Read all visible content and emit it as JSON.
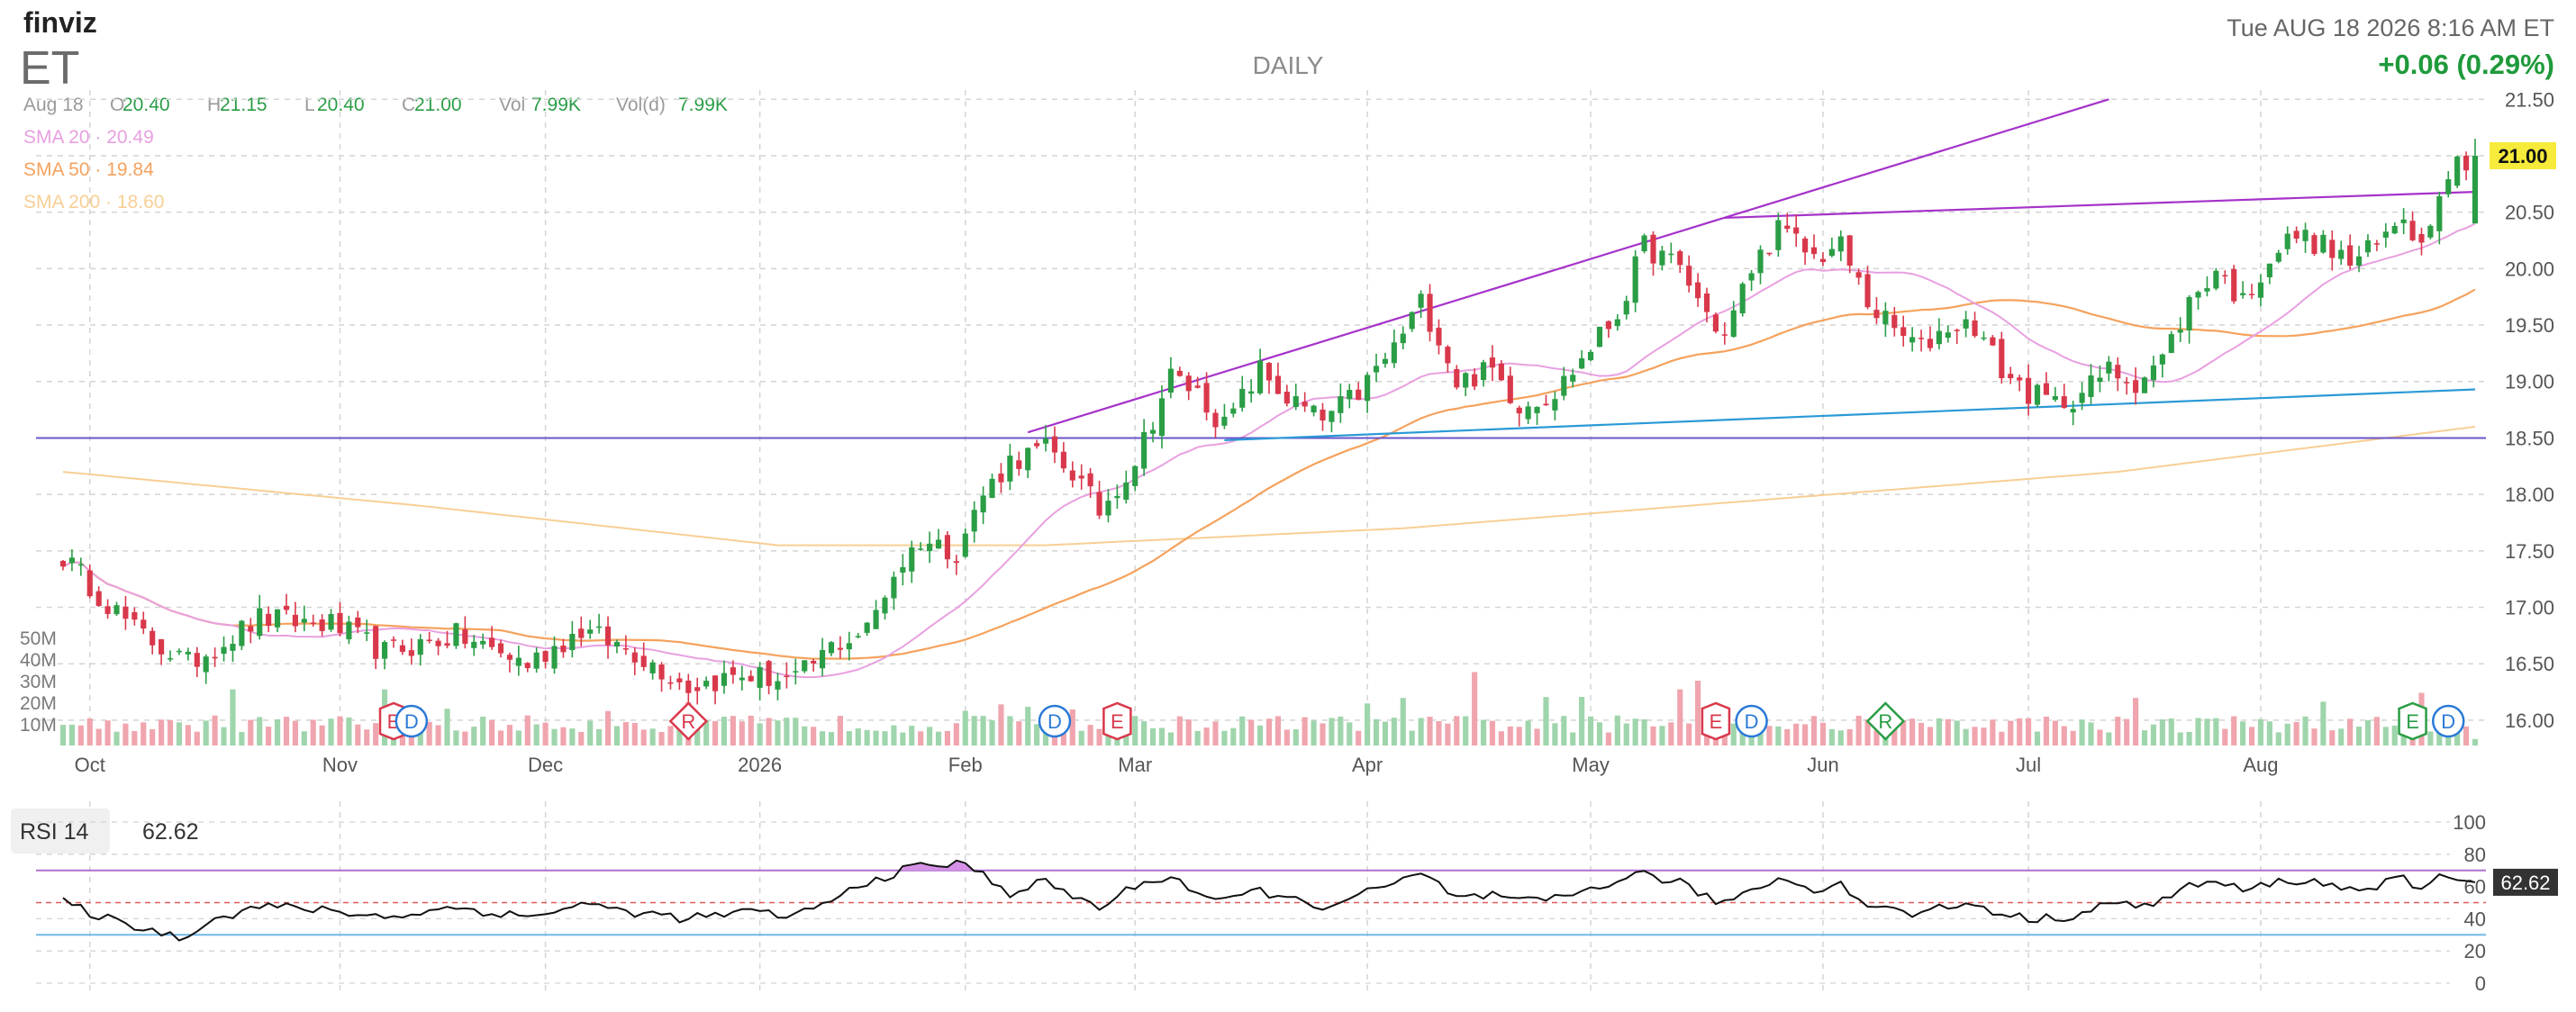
{
  "header": {
    "logo": "finviz",
    "ticker": "ET",
    "timeframe": "DAILY",
    "datetime": "Tue AUG 18 2026 8:16 AM ET",
    "change": "+0.06 (0.29%)"
  },
  "ohlc": [
    {
      "label": "Aug 18",
      "value": ""
    },
    {
      "label": "O",
      "value": "20.40"
    },
    {
      "label": "H",
      "value": "21.15"
    },
    {
      "label": "L",
      "value": "20.40"
    },
    {
      "label": "C",
      "value": "21.00"
    },
    {
      "label": "Vol",
      "value": "7.99K"
    },
    {
      "label": "Vol(d)",
      "value": "7.99K"
    }
  ],
  "sma": [
    {
      "label": "SMA 20",
      "value": "20.49",
      "color": "#e8a0e0"
    },
    {
      "label": "SMA 50",
      "value": "19.84",
      "color": "#f5a25d"
    },
    {
      "label": "SMA 200",
      "value": "18.60",
      "color": "#f7cf95"
    }
  ],
  "colors": {
    "up": "#2a9d45",
    "down": "#d9384b",
    "vol_up": "#9fd5ac",
    "vol_down": "#f0a5ae",
    "grid": "#d4d4d4",
    "axis_text": "#555555",
    "purple_line": "#a532c9",
    "blue_line": "#2a9ad6",
    "horizontal_line": "#6a55c9",
    "price_badge": "#f6eb3a",
    "change_green": "#1f9a3b"
  },
  "price_badge": "21.00",
  "chart_data": {
    "type": "candlestick",
    "x_ticks": [
      "Oct",
      "Nov",
      "Dec",
      "2026",
      "Feb",
      "Mar",
      "Apr",
      "May",
      "Jun",
      "Jul",
      "Aug"
    ],
    "y_ticks": [
      16.0,
      16.5,
      17.0,
      17.5,
      18.0,
      18.5,
      19.0,
      19.5,
      20.0,
      20.5,
      21.0,
      21.5
    ],
    "ylim": [
      15.8,
      21.55
    ],
    "volume_ticks": [
      "10M",
      "20M",
      "30M",
      "40M",
      "50M"
    ],
    "volume_max": 50,
    "price_keypoints": [
      [
        0,
        17.45
      ],
      [
        3,
        17.2
      ],
      [
        8,
        16.8
      ],
      [
        14,
        16.5
      ],
      [
        22,
        16.9
      ],
      [
        30,
        16.85
      ],
      [
        36,
        16.6
      ],
      [
        44,
        16.75
      ],
      [
        52,
        16.5
      ],
      [
        58,
        16.8
      ],
      [
        64,
        16.6
      ],
      [
        70,
        16.3
      ],
      [
        76,
        16.4
      ],
      [
        82,
        16.35
      ],
      [
        86,
        16.65
      ],
      [
        90,
        16.8
      ],
      [
        93,
        17.3
      ],
      [
        96,
        17.6
      ],
      [
        100,
        17.5
      ],
      [
        103,
        18.0
      ],
      [
        106,
        18.3
      ],
      [
        110,
        18.4
      ],
      [
        113,
        18.2
      ],
      [
        116,
        17.85
      ],
      [
        120,
        18.3
      ],
      [
        124,
        19.05
      ],
      [
        127,
        18.9
      ],
      [
        130,
        18.6
      ],
      [
        134,
        19.1
      ],
      [
        137,
        18.85
      ],
      [
        141,
        18.65
      ],
      [
        145,
        18.9
      ],
      [
        149,
        19.3
      ],
      [
        152,
        19.7
      ],
      [
        154,
        19.4
      ],
      [
        156,
        19.0
      ],
      [
        160,
        19.1
      ],
      [
        163,
        18.8
      ],
      [
        167,
        18.9
      ],
      [
        170,
        19.2
      ],
      [
        174,
        19.6
      ],
      [
        177,
        20.2
      ],
      [
        181,
        20.0
      ],
      [
        184,
        19.6
      ],
      [
        186,
        19.4
      ],
      [
        189,
        20.0
      ],
      [
        192,
        20.35
      ],
      [
        196,
        20.1
      ],
      [
        199,
        20.2
      ],
      [
        202,
        19.7
      ],
      [
        205,
        19.45
      ],
      [
        208,
        19.3
      ],
      [
        211,
        19.5
      ],
      [
        214,
        19.5
      ],
      [
        217,
        19.1
      ],
      [
        220,
        18.9
      ],
      [
        223,
        18.8
      ],
      [
        226,
        18.9
      ],
      [
        229,
        19.1
      ],
      [
        232,
        19.0
      ],
      [
        235,
        19.2
      ],
      [
        238,
        19.7
      ],
      [
        241,
        20.0
      ],
      [
        244,
        19.7
      ],
      [
        247,
        20.1
      ],
      [
        250,
        20.3
      ],
      [
        253,
        20.2
      ],
      [
        256,
        20.05
      ],
      [
        259,
        20.2
      ],
      [
        262,
        20.5
      ],
      [
        264,
        20.2
      ],
      [
        266,
        20.75
      ],
      [
        268,
        20.95
      ],
      [
        270,
        21.0
      ]
    ],
    "rsi": {
      "label": "RSI 14",
      "value": "62.62",
      "ticks": [
        0,
        20,
        40,
        60,
        80,
        100
      ],
      "overbought": 70,
      "oversold": 30,
      "mid": 50,
      "keypoints": [
        [
          0,
          50
        ],
        [
          5,
          40
        ],
        [
          10,
          33
        ],
        [
          13,
          28
        ],
        [
          16,
          38
        ],
        [
          22,
          48
        ],
        [
          30,
          45
        ],
        [
          36,
          41
        ],
        [
          44,
          47
        ],
        [
          52,
          41
        ],
        [
          58,
          49
        ],
        [
          64,
          44
        ],
        [
          70,
          40
        ],
        [
          76,
          44
        ],
        [
          82,
          42
        ],
        [
          86,
          51
        ],
        [
          90,
          63
        ],
        [
          96,
          73
        ],
        [
          100,
          74
        ],
        [
          102,
          71
        ],
        [
          106,
          56
        ],
        [
          110,
          63
        ],
        [
          113,
          54
        ],
        [
          116,
          47
        ],
        [
          120,
          60
        ],
        [
          124,
          67
        ],
        [
          127,
          56
        ],
        [
          130,
          50
        ],
        [
          134,
          58
        ],
        [
          137,
          52
        ],
        [
          141,
          48
        ],
        [
          145,
          54
        ],
        [
          149,
          62
        ],
        [
          152,
          67
        ],
        [
          154,
          61
        ],
        [
          156,
          53
        ],
        [
          160,
          54
        ],
        [
          163,
          50
        ],
        [
          167,
          52
        ],
        [
          170,
          57
        ],
        [
          174,
          64
        ],
        [
          177,
          68
        ],
        [
          181,
          62
        ],
        [
          184,
          53
        ],
        [
          186,
          50
        ],
        [
          189,
          58
        ],
        [
          192,
          65
        ],
        [
          196,
          59
        ],
        [
          199,
          61
        ],
        [
          202,
          49
        ],
        [
          205,
          45
        ],
        [
          208,
          43
        ],
        [
          211,
          48
        ],
        [
          214,
          49
        ],
        [
          217,
          43
        ],
        [
          220,
          40
        ],
        [
          223,
          40
        ],
        [
          226,
          44
        ],
        [
          229,
          50
        ],
        [
          232,
          47
        ],
        [
          235,
          52
        ],
        [
          238,
          60
        ],
        [
          241,
          63
        ],
        [
          244,
          57
        ],
        [
          247,
          62
        ],
        [
          250,
          64
        ],
        [
          253,
          62
        ],
        [
          256,
          58
        ],
        [
          259,
          61
        ],
        [
          262,
          64
        ],
        [
          264,
          58
        ],
        [
          266,
          65
        ],
        [
          268,
          66
        ],
        [
          270,
          62.62
        ]
      ]
    }
  },
  "events": [
    {
      "type": "E",
      "shape": "hex",
      "bar": 37
    },
    {
      "type": "D",
      "shape": "circle",
      "bar": 39
    },
    {
      "type": "R",
      "shape": "diamond",
      "bar": 70
    },
    {
      "type": "D",
      "shape": "circle",
      "bar": 111
    },
    {
      "type": "E",
      "shape": "hex",
      "bar": 118
    },
    {
      "type": "E",
      "shape": "hex",
      "bar": 185
    },
    {
      "type": "D",
      "shape": "circle",
      "bar": 189
    },
    {
      "type": "R",
      "shape": "diamond",
      "bar": 204
    },
    {
      "type": "E",
      "shape": "hex",
      "bar": 263
    },
    {
      "type": "D",
      "shape": "circle",
      "bar": 267
    }
  ]
}
